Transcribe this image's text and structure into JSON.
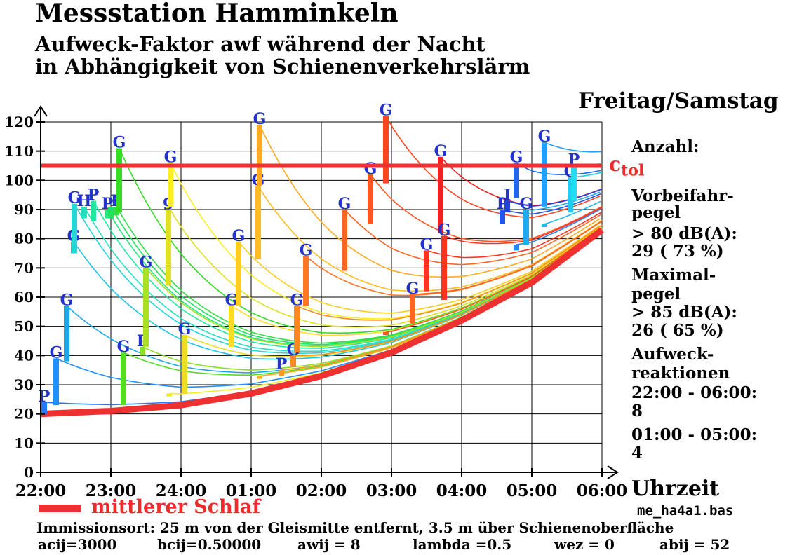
{
  "header": {
    "title": "Messstation Hamminkeln",
    "subtitle_line1": "Aufweck-Faktor awf  während der Nacht",
    "subtitle_line2": " in Abhängigkeit von Schienenverkehrslärm",
    "day": "Freitag/Samstag"
  },
  "side_panel": {
    "count_heading": "Anzahl:",
    "passby_line1": "Vorbeifahr-",
    "passby_line2": "pegel",
    "passby_line3": "> 80 dB(A):",
    "passby_line4": "29   ( 73  %)",
    "max_line1": "Maximal-",
    "max_line2": "pegel",
    "max_line3": "> 85 dB(A):",
    "max_line4": "26   ( 65  %)",
    "wake_line1": "Aufweck-",
    "wake_line2": "reaktionen",
    "wake_line3": "22:00 - 06:00:",
    "wake_line4": "8",
    "wake_line5": "01:00 - 05:00:",
    "wake_line6": "4"
  },
  "footer": {
    "legend_label": "mittlerer Schlaf",
    "filename": "me_ha4a1.bas",
    "immission": "Immissionsort: 25 m von der Gleismitte entfernt, 3.5 m über Schienenoberfläche",
    "param_acij": "acij=3000",
    "param_bcij": "bcij=0.50000",
    "param_awij": "awij = 8",
    "param_lambda": "lambda =0.5",
    "param_wez": "wez = 0",
    "param_abij": "abij = 52"
  },
  "chart_data": {
    "type": "line",
    "x_unit_label": "Uhrzeit",
    "x_hours_after_2200": [
      0,
      1,
      2,
      3,
      4,
      5,
      6,
      7,
      8
    ],
    "x_tick_labels": [
      "22:00",
      "23:00",
      "24:00",
      "01:00",
      "02:00",
      "03:00",
      "04:00",
      "05:00",
      "06:00"
    ],
    "ylim": [
      0,
      120
    ],
    "y_ticks": [
      0,
      10,
      20,
      30,
      40,
      50,
      60,
      70,
      80,
      90,
      100,
      110,
      120
    ],
    "grid": true,
    "c_tol": {
      "label": "c",
      "subscript": "tol",
      "value": 105,
      "color": "#ee3030"
    },
    "baseline": {
      "name": "mittlerer Schlaf",
      "color": "#ee3030",
      "points": [
        [
          0,
          20
        ],
        [
          1,
          21
        ],
        [
          2,
          23
        ],
        [
          3,
          27
        ],
        [
          4,
          33
        ],
        [
          5,
          41
        ],
        [
          6,
          52
        ],
        [
          7,
          65
        ],
        [
          8,
          83
        ]
      ]
    },
    "events": [
      {
        "t": 0.05,
        "lo": 20,
        "hi": 24,
        "label": "P",
        "color": "#2277ff"
      },
      {
        "t": 0.22,
        "lo": 23,
        "hi": 39,
        "label": "G",
        "color": "#1e90ff"
      },
      {
        "t": 0.37,
        "lo": 38,
        "hi": 57,
        "label": "G",
        "color": "#1ea8e8"
      },
      {
        "t": 0.47,
        "lo": 75,
        "hi": 79,
        "label": "G",
        "color": "#22c4e8"
      },
      {
        "t": 0.48,
        "lo": 75,
        "hi": 92,
        "label": "G",
        "color": "#22d8d8"
      },
      {
        "t": 0.62,
        "lo": 87,
        "hi": 91,
        "label": "H",
        "color": "#22e0c0"
      },
      {
        "t": 0.75,
        "lo": 86,
        "hi": 93,
        "label": "P",
        "color": "#22e8a0"
      },
      {
        "t": 0.95,
        "lo": 87,
        "hi": 90,
        "label": "P",
        "color": "#22e880"
      },
      {
        "t": 1.0,
        "lo": 87,
        "hi": 91,
        "label": "",
        "color": "#22e060"
      },
      {
        "t": 1.08,
        "lo": 88,
        "hi": 91,
        "label": "P",
        "color": "#33dd44"
      },
      {
        "t": 1.12,
        "lo": 89,
        "hi": 111,
        "label": "G",
        "color": "#33dd22"
      },
      {
        "t": 1.18,
        "lo": 23,
        "hi": 41,
        "label": "G",
        "color": "#55dd22"
      },
      {
        "t": 1.45,
        "lo": 40,
        "hi": 43,
        "label": "P",
        "color": "#88e022"
      },
      {
        "t": 1.5,
        "lo": 43,
        "hi": 70,
        "label": "G",
        "color": "#aae022"
      },
      {
        "t": 1.82,
        "lo": 64,
        "hi": 91,
        "label": "g",
        "color": "#e0e022"
      },
      {
        "t": 1.83,
        "lo": 26,
        "hi": 27,
        "label": "",
        "color": "#eeee22"
      },
      {
        "t": 1.85,
        "lo": 91,
        "hi": 106,
        "label": "G",
        "color": "#ffee22"
      },
      {
        "t": 2.05,
        "lo": 27,
        "hi": 47,
        "label": "G",
        "color": "#eedd22"
      },
      {
        "t": 2.72,
        "lo": 43,
        "hi": 57,
        "label": "G",
        "color": "#ffdd22"
      },
      {
        "t": 2.82,
        "lo": 57,
        "hi": 79,
        "label": "G",
        "color": "#ffcc22"
      },
      {
        "t": 3.1,
        "lo": 73,
        "hi": 98,
        "label": "G",
        "color": "#ffbb22"
      },
      {
        "t": 3.12,
        "lo": 98,
        "hi": 119,
        "label": "G",
        "color": "#ffaa22"
      },
      {
        "t": 3.12,
        "lo": 32,
        "hi": 33,
        "label": "",
        "color": "#ffaa22"
      },
      {
        "t": 3.43,
        "lo": 33,
        "hi": 35,
        "label": "P",
        "color": "#ff9922"
      },
      {
        "t": 3.6,
        "lo": 36,
        "hi": 40,
        "label": "G",
        "color": "#ff8822"
      },
      {
        "t": 3.65,
        "lo": 41,
        "hi": 57,
        "label": "G",
        "color": "#ff8822"
      },
      {
        "t": 3.78,
        "lo": 57,
        "hi": 74,
        "label": "G",
        "color": "#ff7722"
      },
      {
        "t": 4.33,
        "lo": 69,
        "hi": 90,
        "label": "G",
        "color": "#ff6622"
      },
      {
        "t": 4.7,
        "lo": 85,
        "hi": 102,
        "label": "G",
        "color": "#ff5522"
      },
      {
        "t": 4.92,
        "lo": 99,
        "hi": 122,
        "label": "G",
        "color": "#ff4422"
      },
      {
        "t": 4.92,
        "lo": 47,
        "hi": 48,
        "label": "",
        "color": "#ff5522"
      },
      {
        "t": 5.3,
        "lo": 51,
        "hi": 61,
        "label": "G",
        "color": "#ff6622"
      },
      {
        "t": 5.5,
        "lo": 62,
        "hi": 76,
        "label": "G",
        "color": "#ff3322"
      },
      {
        "t": 5.7,
        "lo": 82,
        "hi": 108,
        "label": "G",
        "color": "#ee2222"
      },
      {
        "t": 5.75,
        "lo": 59,
        "hi": 81,
        "label": "G",
        "color": "#ff3322"
      },
      {
        "t": 6.58,
        "lo": 85,
        "hi": 90,
        "label": "P",
        "color": "#2255ee"
      },
      {
        "t": 6.65,
        "lo": 89,
        "hi": 93,
        "label": "I",
        "color": "#2244dd"
      },
      {
        "t": 6.78,
        "lo": 94,
        "hi": 106,
        "label": "G",
        "color": "#2266ee"
      },
      {
        "t": 6.78,
        "lo": 76,
        "hi": 78,
        "label": "",
        "color": "#2288ff"
      },
      {
        "t": 6.92,
        "lo": 78,
        "hi": 90,
        "label": "G",
        "color": "#22aaee"
      },
      {
        "t": 7.18,
        "lo": 91,
        "hi": 113,
        "label": "G",
        "color": "#22a0ff"
      },
      {
        "t": 7.18,
        "lo": 84,
        "hi": 85,
        "label": "",
        "color": "#22bbee"
      },
      {
        "t": 7.55,
        "lo": 89,
        "hi": 101,
        "label": "G",
        "color": "#22ccee"
      },
      {
        "t": 7.6,
        "lo": 93,
        "hi": 105,
        "label": "P",
        "color": "#22ddee"
      }
    ]
  }
}
